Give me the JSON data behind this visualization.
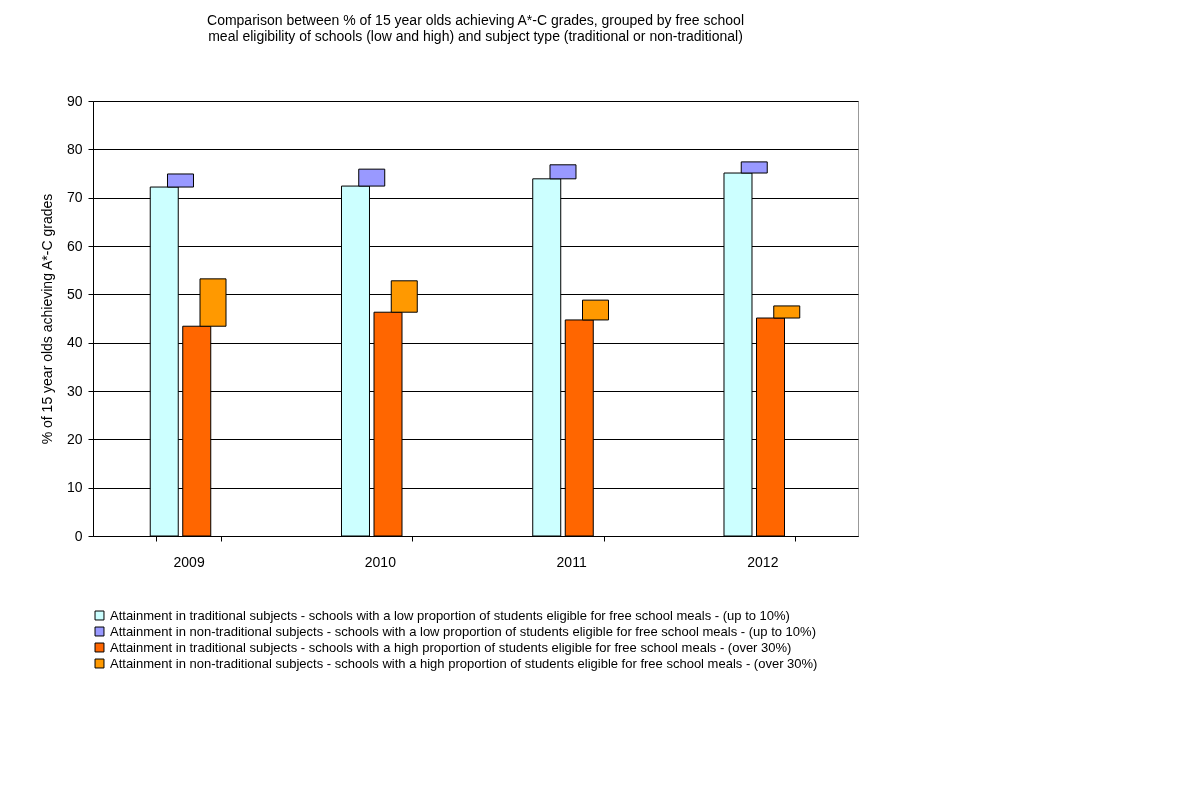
{
  "chart_data": {
    "type": "bar",
    "title": "Comparison between % of 15 year olds achieving A*-C grades, grouped by free school\nmeal eligibility of schools (low and high) and subject type (traditional or non-traditional)",
    "ylabel": "% of 15 year olds achieving A*-C grades",
    "categories": [
      "2009",
      "2010",
      "2011",
      "2012"
    ],
    "series": [
      {
        "name": "Attainment in traditional subjects - schools with a low proportion of students eligible for free school meals - (up to 10%)",
        "color": "#ccffff",
        "values": [
          72.2,
          72.4,
          73.9,
          75.1
        ]
      },
      {
        "name": "Attainment in non-traditional subjects - schools with a low proportion of students eligible for free school meals - (up to 10%)",
        "color": "#9999ff",
        "base": [
          72.2,
          72.4,
          73.9,
          75.1
        ],
        "values": [
          2.7,
          3.5,
          2.9,
          2.3
        ]
      },
      {
        "name": "Attainment in traditional subjects - schools with a high proportion of students eligible for free school meals - (over 30%)",
        "color": "#ff6600",
        "values": [
          43.4,
          46.3,
          44.7,
          45.1
        ]
      },
      {
        "name": "Attainment in non-traditional subjects - schools with a high proportion of students eligible for free school meals - (over 30%)",
        "color": "#ff9900",
        "base": [
          43.4,
          46.3,
          44.7,
          45.1
        ],
        "values": [
          9.8,
          6.5,
          4.1,
          2.5
        ]
      }
    ],
    "ylim": [
      0,
      90
    ],
    "yticks": [
      0,
      10,
      20,
      30,
      40,
      50,
      60,
      70,
      80,
      90
    ],
    "grid": "y",
    "legend": "bottom"
  }
}
